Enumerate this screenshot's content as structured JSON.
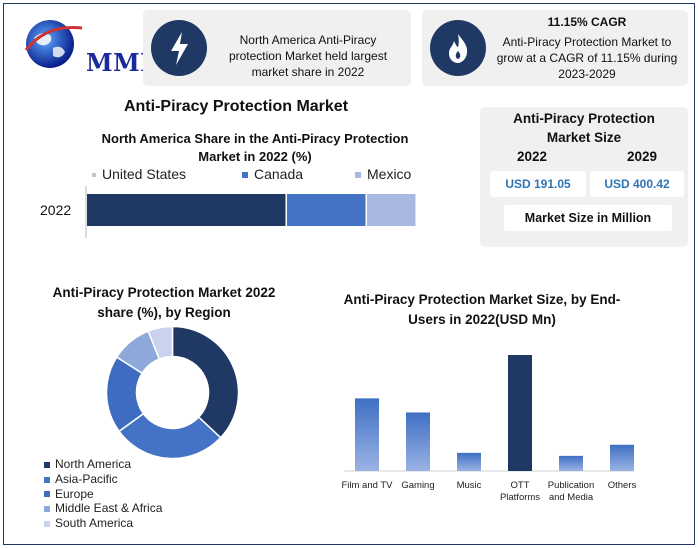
{
  "logo": {
    "text": "MMR"
  },
  "card1": {
    "icon": "lightning-icon",
    "text": "North America Anti-Piracy protection Market held largest market share in 2022"
  },
  "card2": {
    "icon": "flame-icon",
    "heading": "11.15% CAGR",
    "text": "Anti-Piracy Protection Market to grow at a CAGR of 11.15% during 2023-2029"
  },
  "main_title": "Anti-Piracy Protection Market",
  "market_size": {
    "title": "Anti-Piracy Protection Market Size",
    "year1": "2022",
    "year2": "2029",
    "value1": "USD 191.05",
    "value2": "USD 400.42",
    "unit_label": "Market Size in Million"
  },
  "colors": {
    "north_america": "#1f3864",
    "canada": "#4472c4",
    "mexico": "#a9b8e0",
    "europe": "#3d6cc0",
    "middle_east": "#8fa8dc",
    "south_america": "#c9d3ee"
  },
  "chart_data": [
    {
      "type": "bar",
      "title": "North America Share in the Anti-Piracy Protection Market in 2022 (%)",
      "categories": [
        "2022"
      ],
      "series": [
        {
          "name": "United States",
          "values": [
            60
          ]
        },
        {
          "name": "Canada",
          "values": [
            24
          ]
        },
        {
          "name": "Mexico",
          "values": [
            15
          ]
        }
      ],
      "orientation": "horizontal",
      "stacked": true,
      "legend": "top"
    },
    {
      "type": "pie",
      "donut": true,
      "title": "Anti-Piracy Protection Market 2022 share (%), by Region",
      "labels": [
        "North America",
        "Asia-Pacific",
        "Europe",
        "Middle East & Africa",
        "South America"
      ],
      "values": [
        37,
        28,
        19,
        10,
        6
      ],
      "legend": "bottom-left"
    },
    {
      "type": "bar",
      "title": "Anti-Piracy Protection Market Size, by End- Users in 2022(USD Mn)",
      "categories": [
        "Film and TV",
        "Gaming",
        "Music",
        "OTT Platforms",
        "Publication and Media",
        "Others"
      ],
      "values": [
        72,
        58,
        18,
        115,
        15,
        26
      ],
      "highlight": "OTT Platforms"
    }
  ]
}
